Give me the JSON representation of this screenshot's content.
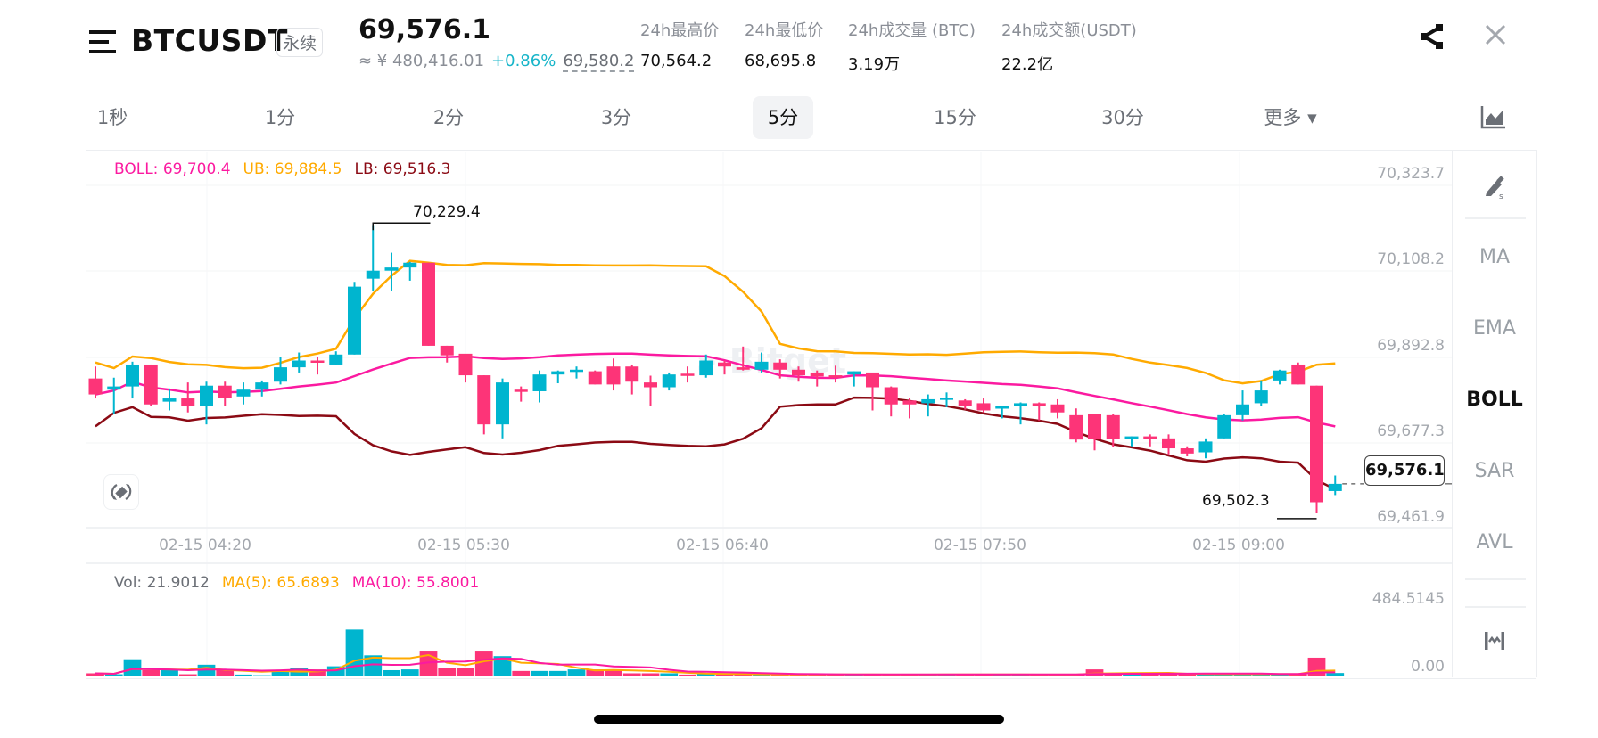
{
  "header": {
    "symbol": "BTCUSDT",
    "contract_type": "永续",
    "last_price": "69,576.1",
    "cny_equiv": "≈ ¥ 480,416.01",
    "change_pct": "+0.86%",
    "mark_price": "69,580.2",
    "stats": [
      {
        "label": "24h最高价",
        "value": "70,564.2"
      },
      {
        "label": "24h最低价",
        "value": "68,695.8"
      },
      {
        "label": "24h成交量 (BTC)",
        "value": "3.19万"
      },
      {
        "label": "24h成交额(USDT)",
        "value": "22.2亿"
      }
    ],
    "icons": {
      "menu": "menu-icon",
      "share": "share-icon",
      "close": "close-icon"
    }
  },
  "timeframes": {
    "tabs": [
      "1秒",
      "1分",
      "2分",
      "3分",
      "5分",
      "15分",
      "30分",
      "更多 ▾"
    ],
    "active": "5分"
  },
  "side_panel": {
    "items": [
      "MA",
      "EMA",
      "BOLL",
      "SAR",
      "AVL"
    ],
    "active": "BOLL",
    "icons": [
      "drawing-pen-icon",
      "indicator-settings-icon"
    ]
  },
  "main_chart": {
    "legend": {
      "boll": "BOLL: 69,700.4",
      "ub": "UB: 69,884.5",
      "lb": "LB: 69,516.3"
    },
    "y_ticks": [
      "70,323.7",
      "70,108.2",
      "69,892.8",
      "69,677.3",
      "69,461.9"
    ],
    "x_ticks": [
      "02-15 04:20",
      "02-15 05:30",
      "02-15 06:40",
      "02-15 07:50",
      "02-15 09:00"
    ],
    "high_marker": "70,229.4",
    "low_marker": "69,502.3",
    "current_price": "69,576.1",
    "watermark": "Bitget"
  },
  "volume_chart": {
    "legend": {
      "vol": "Vol: 21.9012",
      "ma5": "MA(5): 65.6893",
      "ma10": "MA(10): 55.8001"
    },
    "y_ticks": [
      "484.5145",
      "0.00"
    ]
  },
  "colors": {
    "up": "#00b5cf",
    "down": "#fd3478",
    "boll_mid": "#fb1aa0",
    "boll_ub": "#ffaa00",
    "boll_lb": "#8b0a14",
    "vol_ma5": "#ffaa00",
    "vol_ma10": "#fb1aa0",
    "accent_change": "#17b5c9"
  },
  "chart_data": {
    "type": "candlestick",
    "title": "BTCUSDT 5分",
    "interval": "5m",
    "x_ticks": [
      "02-15 04:20",
      "02-15 05:30",
      "02-15 06:40",
      "02-15 07:50",
      "02-15 09:00"
    ],
    "ylim": [
      69461.9,
      70323.7
    ],
    "candles": [
      [
        69840,
        69800,
        69870,
        69790
      ],
      [
        69812,
        69820,
        69842,
        69752
      ],
      [
        69820,
        69875,
        69882,
        69790
      ],
      [
        69875,
        69775,
        69875,
        69770
      ],
      [
        69782,
        69790,
        69815,
        69760
      ],
      [
        69790,
        69770,
        69830,
        69755
      ],
      [
        69770,
        69822,
        69832,
        69725
      ],
      [
        69822,
        69792,
        69832,
        69770
      ],
      [
        69795,
        69812,
        69830,
        69775
      ],
      [
        69812,
        69830,
        69835,
        69795
      ],
      [
        69832,
        69868,
        69895,
        69825
      ],
      [
        69868,
        69885,
        69905,
        69855
      ],
      [
        69885,
        69880,
        69895,
        69850
      ],
      [
        69875,
        69900,
        69908,
        69875
      ],
      [
        69900,
        70070,
        70082,
        69900
      ],
      [
        70090,
        70110,
        70222,
        70060
      ],
      [
        70110,
        70118,
        70155,
        70060
      ],
      [
        70118,
        70130,
        70132,
        70085
      ],
      [
        70130,
        69922,
        70130,
        69922
      ],
      [
        69922,
        69898,
        69922,
        69880
      ],
      [
        69902,
        69848,
        69890,
        69830
      ],
      [
        69848,
        69725,
        69848,
        69700
      ],
      [
        69725,
        69830,
        69840,
        69690
      ],
      [
        69812,
        69808,
        69820,
        69782
      ],
      [
        69808,
        69850,
        69860,
        69780
      ],
      [
        69850,
        69858,
        69860,
        69828
      ],
      [
        69858,
        69862,
        69870,
        69840
      ],
      [
        69858,
        69825,
        69860,
        69825
      ],
      [
        69870,
        69825,
        69890,
        69810
      ],
      [
        69870,
        69832,
        69875,
        69800
      ],
      [
        69830,
        69818,
        69847,
        69770
      ],
      [
        69818,
        69850,
        69855,
        69810
      ],
      [
        69852,
        69848,
        69870,
        69830
      ],
      [
        69848,
        69885,
        69900,
        69842
      ],
      [
        69880,
        69870,
        69885,
        69850
      ],
      [
        69868,
        69862,
        69920,
        69860
      ],
      [
        69862,
        69882,
        69905,
        69855
      ],
      [
        69880,
        69862,
        69888,
        69840
      ],
      [
        69862,
        69848,
        69870,
        69832
      ],
      [
        69855,
        69845,
        69860,
        69820
      ],
      [
        69848,
        69842,
        69872,
        69830
      ],
      [
        69850,
        69858,
        69858,
        69820
      ],
      [
        69855,
        69818,
        69852,
        69760
      ],
      [
        69818,
        69775,
        69820,
        69745
      ],
      [
        69785,
        69775,
        69790,
        69740
      ],
      [
        69778,
        69788,
        69800,
        69745
      ],
      [
        69788,
        69792,
        69805,
        69768
      ],
      [
        69785,
        69772,
        69788,
        69762
      ],
      [
        69778,
        69760,
        69790,
        69755
      ],
      [
        69765,
        69770,
        69770,
        69740
      ],
      [
        69770,
        69778,
        69780,
        69725
      ],
      [
        69778,
        69770,
        69780,
        69735
      ],
      [
        69775,
        69755,
        69788,
        69740
      ],
      [
        69748,
        69687,
        69765,
        69680
      ],
      [
        69750,
        69688,
        69752,
        69660
      ],
      [
        69748,
        69688,
        69750,
        69668
      ],
      [
        69690,
        69695,
        69695,
        69670
      ],
      [
        69695,
        69688,
        69700,
        69670
      ],
      [
        69690,
        69665,
        69700,
        69650
      ],
      [
        69665,
        69652,
        69670,
        69645
      ],
      [
        69655,
        69682,
        69690,
        69640
      ],
      [
        69690,
        69748,
        69752,
        69690
      ],
      [
        69748,
        69775,
        69810,
        69735
      ],
      [
        69778,
        69810,
        69835,
        69770
      ],
      [
        69835,
        69860,
        69862,
        69825
      ],
      [
        69875,
        69825,
        69880,
        69825
      ],
      [
        69822,
        69530,
        69822,
        69502
      ],
      [
        69558,
        69576,
        69597,
        69548
      ]
    ],
    "candle_format": "[open, close, high, low]",
    "bollinger": {
      "period": "BOLL",
      "mid_last": 69700.4,
      "ub_last": 69884.5,
      "lb_last": 69516.3
    },
    "volume": {
      "ylim": [
        0,
        484.5145
      ],
      "values": [
        20,
        14,
        110,
        40,
        40,
        14,
        75,
        40,
        12,
        8,
        40,
        55,
        45,
        65,
        300,
        135,
        40,
        45,
        165,
        55,
        55,
        165,
        130,
        35,
        35,
        35,
        45,
        45,
        45,
        20,
        20,
        20,
        12,
        20,
        12,
        12,
        12,
        12,
        15,
        12,
        12,
        12,
        12,
        12,
        12,
        12,
        15,
        12,
        12,
        12,
        12,
        12,
        12,
        12,
        45,
        20,
        20,
        15,
        15,
        15,
        15,
        15,
        15,
        15,
        15,
        15,
        120,
        21.9
      ]
    }
  }
}
